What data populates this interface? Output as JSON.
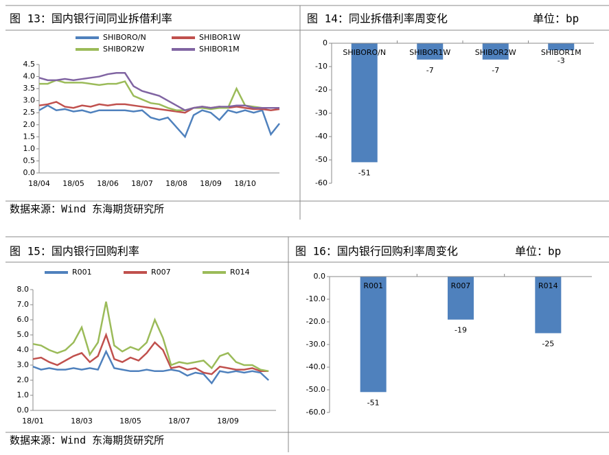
{
  "chart_data": [
    {
      "type": "line",
      "title": "图 13：国内银行间同业拆借利率",
      "categories": [
        "18/04",
        null,
        null,
        null,
        "18/05",
        null,
        null,
        null,
        "18/06",
        null,
        null,
        null,
        "18/07",
        null,
        null,
        null,
        "18/08",
        null,
        null,
        null,
        "18/09",
        null,
        null,
        null,
        "18/10",
        null,
        null,
        null,
        null
      ],
      "series": [
        {
          "name": "SHIBORO/N",
          "color": "#4f81bd",
          "values": [
            2.6,
            2.8,
            2.6,
            2.65,
            2.55,
            2.6,
            2.5,
            2.6,
            2.6,
            2.6,
            2.6,
            2.55,
            2.6,
            2.3,
            2.2,
            2.3,
            1.9,
            1.5,
            2.4,
            2.6,
            2.5,
            2.2,
            2.6,
            2.5,
            2.6,
            2.5,
            2.6,
            1.6,
            2.05
          ]
        },
        {
          "name": "SHIBOR1W",
          "color": "#c0504d",
          "values": [
            2.8,
            2.85,
            2.95,
            2.75,
            2.7,
            2.8,
            2.75,
            2.85,
            2.8,
            2.85,
            2.85,
            2.8,
            2.75,
            2.7,
            2.65,
            2.6,
            2.55,
            2.5,
            2.7,
            2.75,
            2.7,
            2.75,
            2.7,
            2.75,
            2.7,
            2.65,
            2.65,
            2.6,
            2.65
          ]
        },
        {
          "name": "SHIBOR2W",
          "color": "#9bbb59",
          "values": [
            3.7,
            3.7,
            3.85,
            3.75,
            3.75,
            3.75,
            3.7,
            3.65,
            3.7,
            3.7,
            3.8,
            3.2,
            3.05,
            2.9,
            2.85,
            2.7,
            2.6,
            2.6,
            2.7,
            2.7,
            2.65,
            2.7,
            2.7,
            3.5,
            2.8,
            2.75,
            2.7,
            2.7,
            2.7
          ]
        },
        {
          "name": "SHIBOR1M",
          "color": "#8064a2",
          "values": [
            3.95,
            3.85,
            3.85,
            3.9,
            3.85,
            3.9,
            3.95,
            4.0,
            4.1,
            4.15,
            4.15,
            3.6,
            3.4,
            3.3,
            3.2,
            3.0,
            2.8,
            2.6,
            2.7,
            2.75,
            2.7,
            2.75,
            2.75,
            2.8,
            2.8,
            2.7,
            2.7,
            2.7,
            2.7
          ]
        }
      ],
      "ylim": [
        0,
        4.5
      ],
      "yticks": [
        {
          "value": 0,
          "label": "0.0"
        },
        0.5,
        {
          "value": 1,
          "label": "1.0"
        },
        1.5,
        {
          "value": 2,
          "label": "2.0"
        },
        2.5,
        {
          "value": 3,
          "label": "3.0"
        },
        3.5,
        {
          "value": 4,
          "label": "4.0"
        },
        4.5
      ],
      "legend": "top"
    },
    {
      "type": "bar",
      "title": "图 14：同业拆借利率周变化",
      "unit": "单位：bp",
      "categories": [
        "SHIBORO/N",
        "SHIBOR1W",
        "SHIBOR2W",
        "SHIBOR1M"
      ],
      "values": [
        -51,
        -7,
        -7,
        -3
      ],
      "color": "#4f81bd",
      "ylim": [
        -60,
        0
      ],
      "yticks": [
        0,
        -10,
        -20,
        -30,
        -40,
        -50,
        -60
      ]
    },
    {
      "type": "line",
      "title": "图 15：国内银行回购利率",
      "categories": [
        "18/01",
        null,
        null,
        null,
        null,
        null,
        "18/03",
        null,
        null,
        null,
        null,
        null,
        "18/05",
        null,
        null,
        null,
        null,
        null,
        "18/07",
        null,
        null,
        null,
        null,
        null,
        "18/09",
        null,
        null,
        null,
        null,
        null
      ],
      "series": [
        {
          "name": "R001",
          "color": "#4f81bd",
          "values": [
            2.9,
            2.7,
            2.8,
            2.7,
            2.7,
            2.8,
            2.7,
            2.8,
            2.7,
            3.9,
            2.8,
            2.7,
            2.6,
            2.6,
            2.7,
            2.6,
            2.6,
            2.7,
            2.6,
            2.3,
            2.5,
            2.4,
            1.8,
            2.6,
            2.5,
            2.6,
            2.5,
            2.6,
            2.5,
            2.0
          ]
        },
        {
          "name": "R007",
          "color": "#c0504d",
          "values": [
            3.4,
            3.5,
            3.2,
            3.0,
            3.3,
            3.6,
            3.8,
            3.2,
            3.6,
            5.0,
            3.4,
            3.2,
            3.5,
            3.3,
            3.8,
            4.5,
            4.0,
            2.8,
            2.9,
            2.7,
            2.8,
            2.5,
            2.4,
            2.9,
            2.8,
            2.7,
            2.7,
            2.8,
            2.6,
            2.6
          ]
        },
        {
          "name": "R014",
          "color": "#9bbb59",
          "values": [
            4.4,
            4.3,
            4.0,
            3.8,
            4.0,
            4.5,
            5.5,
            3.7,
            4.5,
            7.2,
            4.3,
            3.9,
            4.2,
            4.0,
            4.5,
            6.0,
            4.8,
            3.0,
            3.2,
            3.1,
            3.2,
            3.3,
            2.8,
            3.6,
            3.8,
            3.2,
            3.0,
            3.0,
            2.7,
            2.6
          ]
        }
      ],
      "ylim": [
        0,
        8
      ],
      "yticks": [
        {
          "value": 0,
          "label": "0.0"
        },
        {
          "value": 1,
          "label": "1.0"
        },
        {
          "value": 2,
          "label": "2.0"
        },
        {
          "value": 3,
          "label": "3.0"
        },
        {
          "value": 4,
          "label": "4.0"
        },
        {
          "value": 5,
          "label": "5.0"
        },
        {
          "value": 6,
          "label": "6.0"
        },
        {
          "value": 7,
          "label": "7.0"
        },
        {
          "value": 8,
          "label": "8.0"
        }
      ],
      "legend": "top"
    },
    {
      "type": "bar",
      "title": "图 16：国内银行回购利率周变化",
      "unit": "单位：bp",
      "categories": [
        "R001",
        "R007",
        "R014"
      ],
      "values": [
        -51,
        -19,
        -25
      ],
      "color": "#4f81bd",
      "ylim": [
        -60,
        0
      ],
      "yticks": [
        {
          "value": 0,
          "label": "0.0"
        },
        {
          "value": -10,
          "label": "-10.0"
        },
        {
          "value": -20,
          "label": "-20.0"
        },
        {
          "value": -30,
          "label": "-30.0"
        },
        {
          "value": -40,
          "label": "-40.0"
        },
        {
          "value": -50,
          "label": "-50.0"
        },
        {
          "value": -60,
          "label": "-60.0"
        }
      ]
    }
  ],
  "sources": [
    "数据来源：Wind  东海期货研究所",
    "数据来源：Wind  东海期货研究所"
  ]
}
